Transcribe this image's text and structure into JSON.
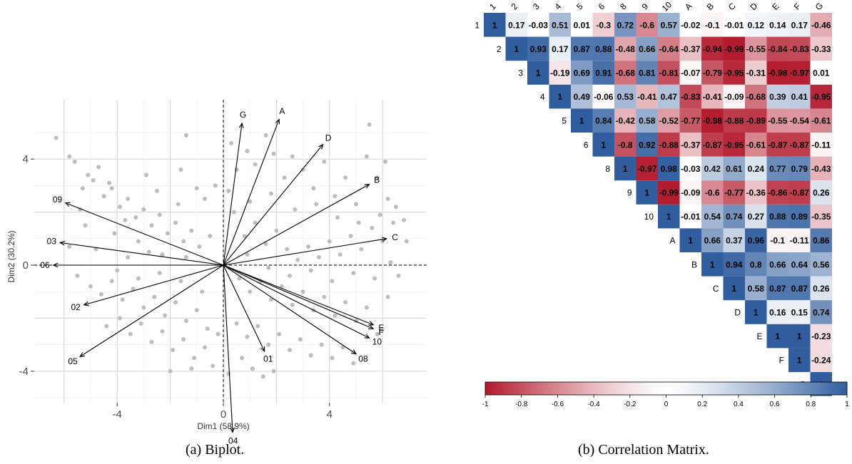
{
  "chart_data": [
    {
      "type": "scatter",
      "subtype": "pca-biplot",
      "caption": "(a) Biplot.",
      "xlabel": "Dim1 (58.9%)",
      "ylabel": "Dim2 (30.2%)",
      "xlim": [
        -6.5,
        7.2
      ],
      "ylim": [
        -6.2,
        5.7
      ],
      "xticks": [
        -4,
        0,
        4
      ],
      "yticks": [
        -4,
        0,
        4
      ],
      "xtick_labels": [
        "-4",
        "0",
        "4"
      ],
      "ytick_labels": [
        "-4",
        "0",
        "4"
      ],
      "grid": true,
      "reference_lines": "dashed at x=0 and y=0",
      "point_color": "#bdbdbd",
      "vectors": [
        {
          "label": "G",
          "x": 0.7,
          "y": 5.35
        },
        {
          "label": "A",
          "x": 2.1,
          "y": 5.5
        },
        {
          "label": "D",
          "x": 3.75,
          "y": 4.55
        },
        {
          "label": "B",
          "x": 5.5,
          "y": 3.05
        },
        {
          "label": "C",
          "x": 6.15,
          "y": 1.0
        },
        {
          "label": "E",
          "x": 5.65,
          "y": -2.25
        },
        {
          "label": "F",
          "x": 5.65,
          "y": -2.4
        },
        {
          "label": "10",
          "x": 5.5,
          "y": -2.75
        },
        {
          "label": "08",
          "x": 5.0,
          "y": -3.35
        },
        {
          "label": "01",
          "x": 1.55,
          "y": -3.25
        },
        {
          "label": "04",
          "x": 0.35,
          "y": -6.3
        },
        {
          "label": "05",
          "x": -5.4,
          "y": -3.45
        },
        {
          "label": "02",
          "x": -5.25,
          "y": -1.5
        },
        {
          "label": "06",
          "x": -6.4,
          "y": 0.0
        },
        {
          "label": "03",
          "x": -6.15,
          "y": 0.85
        },
        {
          "label": "09",
          "x": -5.95,
          "y": 2.35
        }
      ],
      "points": [
        [
          -6.3,
          4.8
        ],
        [
          -5.8,
          4.1
        ],
        [
          -5.6,
          3.9
        ],
        [
          -5.3,
          2.9
        ],
        [
          -5.1,
          3.4
        ],
        [
          -4.9,
          3.2
        ],
        [
          -4.7,
          3.7
        ],
        [
          -4.5,
          2.6
        ],
        [
          -4.2,
          2.9
        ],
        [
          -3.9,
          2.2
        ],
        [
          -3.6,
          2.5
        ],
        [
          -3.3,
          1.8
        ],
        [
          -3.0,
          2.1
        ],
        [
          -2.7,
          1.5
        ],
        [
          -2.4,
          1.9
        ],
        [
          -2.1,
          1.2
        ],
        [
          -1.8,
          1.6
        ],
        [
          -1.5,
          0.9
        ],
        [
          -1.2,
          1.3
        ],
        [
          -0.9,
          0.7
        ],
        [
          -5.0,
          -0.8
        ],
        [
          -4.6,
          -1.1
        ],
        [
          -4.2,
          -0.6
        ],
        [
          -3.8,
          -1.3
        ],
        [
          -3.4,
          -0.9
        ],
        [
          -3.0,
          -1.6
        ],
        [
          -2.6,
          -1.2
        ],
        [
          -2.2,
          -1.9
        ],
        [
          -1.8,
          -1.4
        ],
        [
          -1.4,
          -2.1
        ],
        [
          -1.0,
          -1.7
        ],
        [
          -0.6,
          -2.4
        ],
        [
          -4.4,
          -2.3
        ],
        [
          -3.9,
          -2.0
        ],
        [
          -3.5,
          -2.6
        ],
        [
          -3.1,
          -2.2
        ],
        [
          -2.7,
          -2.9
        ],
        [
          -2.3,
          -2.5
        ],
        [
          -1.9,
          -3.2
        ],
        [
          -1.5,
          -2.8
        ],
        [
          -1.1,
          -3.5
        ],
        [
          -0.7,
          -3.1
        ],
        [
          -2.0,
          -4.0
        ],
        [
          -1.2,
          -3.9
        ],
        [
          -0.4,
          -3.8
        ],
        [
          -2.8,
          0.5
        ],
        [
          -3.6,
          0.3
        ],
        [
          -4.8,
          0.6
        ],
        [
          -5.2,
          1.5
        ],
        [
          -4.1,
          1.2
        ],
        [
          -3.2,
          0.9
        ],
        [
          -2.3,
          0.4
        ],
        [
          -1.4,
          0.3
        ],
        [
          -0.5,
          1.1
        ],
        [
          -2.9,
          3.4
        ],
        [
          -1.6,
          3.6
        ],
        [
          -1.4,
          4.9
        ],
        [
          -1.0,
          2.9
        ],
        [
          -0.3,
          3.0
        ],
        [
          0.3,
          4.6
        ],
        [
          0.5,
          3.6
        ],
        [
          0.9,
          4.3
        ],
        [
          1.2,
          3.8
        ],
        [
          1.6,
          4.9
        ],
        [
          1.9,
          4.2
        ],
        [
          2.3,
          3.3
        ],
        [
          2.6,
          4.1
        ],
        [
          3.0,
          3.6
        ],
        [
          3.4,
          2.9
        ],
        [
          3.8,
          3.9
        ],
        [
          4.2,
          2.6
        ],
        [
          4.6,
          3.3
        ],
        [
          5.0,
          2.3
        ],
        [
          5.4,
          4.1
        ],
        [
          5.8,
          3.3
        ],
        [
          6.2,
          2.5
        ],
        [
          6.4,
          1.6
        ],
        [
          6.0,
          0.9
        ],
        [
          5.6,
          1.4
        ],
        [
          5.2,
          0.6
        ],
        [
          4.8,
          1.1
        ],
        [
          4.4,
          0.4
        ],
        [
          4.0,
          0.9
        ],
        [
          3.6,
          0.3
        ],
        [
          3.2,
          0.7
        ],
        [
          2.8,
          0.2
        ],
        [
          2.4,
          0.6
        ],
        [
          2.0,
          1.3
        ],
        [
          1.6,
          0.8
        ],
        [
          1.2,
          1.6
        ],
        [
          0.8,
          1.1
        ],
        [
          0.4,
          2.0
        ],
        [
          0.6,
          -0.5
        ],
        [
          1.0,
          -1.0
        ],
        [
          1.4,
          -0.6
        ],
        [
          1.8,
          -1.3
        ],
        [
          2.2,
          -0.8
        ],
        [
          2.6,
          -1.5
        ],
        [
          3.0,
          -1.0
        ],
        [
          3.4,
          -1.7
        ],
        [
          3.8,
          -1.2
        ],
        [
          4.2,
          -1.9
        ],
        [
          4.6,
          -1.4
        ],
        [
          5.0,
          -2.1
        ],
        [
          5.4,
          -1.6
        ],
        [
          5.8,
          -2.6
        ],
        [
          6.2,
          -1.2
        ],
        [
          6.6,
          -0.4
        ],
        [
          6.9,
          0.9
        ],
        [
          6.5,
          2.2
        ],
        [
          0.5,
          -2.2
        ],
        [
          0.9,
          -2.7
        ],
        [
          1.3,
          -2.3
        ],
        [
          1.7,
          -3.0
        ],
        [
          2.1,
          -2.6
        ],
        [
          2.5,
          -3.2
        ],
        [
          2.9,
          -2.8
        ],
        [
          3.3,
          -3.4
        ],
        [
          3.7,
          -3.0
        ],
        [
          4.1,
          -3.5
        ],
        [
          4.5,
          -3.1
        ],
        [
          4.9,
          -3.7
        ],
        [
          1.1,
          -3.9
        ],
        [
          1.5,
          -4.2
        ],
        [
          0.2,
          -4.1
        ],
        [
          0.7,
          -3.5
        ],
        [
          1.9,
          -4.0
        ],
        [
          -0.2,
          -2.6
        ],
        [
          -0.8,
          -1.0
        ],
        [
          -1.6,
          -0.6
        ],
        [
          -2.4,
          -0.3
        ],
        [
          -3.2,
          -0.5
        ],
        [
          -4.0,
          -0.2
        ],
        [
          -5.5,
          -0.4
        ],
        [
          -5.8,
          0.7
        ],
        [
          -5.4,
          2.1
        ],
        [
          -4.3,
          3.1
        ],
        [
          -3.7,
          1.7
        ],
        [
          -2.5,
          2.8
        ],
        [
          -1.7,
          2.3
        ],
        [
          -0.7,
          2.5
        ],
        [
          0.2,
          2.8
        ],
        [
          1.0,
          2.4
        ],
        [
          1.8,
          2.7
        ],
        [
          2.7,
          2.1
        ],
        [
          3.5,
          2.3
        ],
        [
          4.3,
          1.8
        ],
        [
          5.1,
          1.6
        ],
        [
          5.9,
          1.9
        ],
        [
          5.5,
          5.3
        ],
        [
          6.1,
          3.9
        ],
        [
          6.8,
          1.7
        ],
        [
          6.3,
          0.1
        ],
        [
          5.7,
          -0.5
        ],
        [
          4.9,
          -0.3
        ],
        [
          4.1,
          -0.6
        ],
        [
          3.3,
          -0.2
        ],
        [
          2.5,
          -0.4
        ],
        [
          1.7,
          -0.1
        ],
        [
          0.9,
          0.4
        ]
      ]
    },
    {
      "type": "heatmap",
      "subtype": "correlation-matrix-upper",
      "caption": "(b) Correlation Matrix.",
      "row_labels": [
        "1",
        "2",
        "3",
        "4",
        "5",
        "6",
        "8",
        "9",
        "10",
        "A",
        "B",
        "C",
        "D",
        "E",
        "F",
        "G"
      ],
      "col_labels": [
        "1",
        "2",
        "3",
        "4",
        "5",
        "6",
        "8",
        "9",
        "10",
        "A",
        "B",
        "C",
        "D",
        "E",
        "F",
        "G"
      ],
      "color_scale": {
        "low": "#b2182b",
        "mid": "#ffffff",
        "high": "#2f5d9e",
        "range": [
          -1,
          1
        ]
      },
      "colorbar_ticks": [
        "-1",
        "-0.8",
        "-0.6",
        "-0.4",
        "-0.2",
        "0",
        "0.2",
        "0.4",
        "0.6",
        "0.8",
        "1"
      ],
      "rows": [
        [
          "1",
          "0.17",
          "-0.03",
          "0.51",
          "0.01",
          "-0.3",
          "0.72",
          "-0.6",
          "0.57",
          "-0.02",
          "-0.1",
          "-0.01",
          "0.12",
          "0.14",
          "0.17",
          "-0.46"
        ],
        [
          "1",
          "0.93",
          "0.17",
          "0.87",
          "0.88",
          "-0.48",
          "0.66",
          "-0.64",
          "-0.37",
          "-0.94",
          "-0.99",
          "-0.55",
          "-0.84",
          "-0.83",
          "-0.33"
        ],
        [
          "1",
          "-0.19",
          "0.69",
          "0.91",
          "-0.68",
          "0.81",
          "-0.81",
          "-0.07",
          "-0.79",
          "-0.95",
          "-0.31",
          "-0.98",
          "-0.97",
          "0.01"
        ],
        [
          "1",
          "0.49",
          "-0.06",
          "0.53",
          "-0.41",
          "0.47",
          "-0.83",
          "-0.41",
          "-0.09",
          "-0.68",
          "0.39",
          "0.41",
          "-0.95"
        ],
        [
          "1",
          "0.84",
          "-0.42",
          "0.58",
          "-0.52",
          "-0.77",
          "-0.98",
          "-0.88",
          "-0.89",
          "-0.55",
          "-0.54",
          "-0.61"
        ],
        [
          "1",
          "-0.8",
          "0.92",
          "-0.88",
          "-0.37",
          "-0.87",
          "-0.95",
          "-0.61",
          "-0.87",
          "-0.87",
          "-0.11"
        ],
        [
          "1",
          "-0.97",
          "0.98",
          "-0.03",
          "0.42",
          "0.61",
          "0.24",
          "0.77",
          "0.79",
          "-0.43"
        ],
        [
          "1",
          "-0.99",
          "-0.09",
          "-0.6",
          "-0.77",
          "-0.36",
          "-0.86",
          "-0.87",
          "0.26"
        ],
        [
          "1",
          "-0.01",
          "0.54",
          "0.74",
          "0.27",
          "0.88",
          "0.89",
          "-0.35"
        ],
        [
          "1",
          "0.66",
          "0.37",
          "0.96",
          "-0.1",
          "-0.11",
          "0.86"
        ],
        [
          "1",
          "0.94",
          "0.8",
          "0.66",
          "0.64",
          "0.56"
        ],
        [
          "1",
          "0.58",
          "0.87",
          "0.87",
          "0.26"
        ],
        [
          "1",
          "0.16",
          "0.15",
          "0.74"
        ],
        [
          "1",
          "1",
          "-0.23"
        ],
        [
          "1",
          "-0.24"
        ],
        [
          "1"
        ]
      ]
    }
  ]
}
